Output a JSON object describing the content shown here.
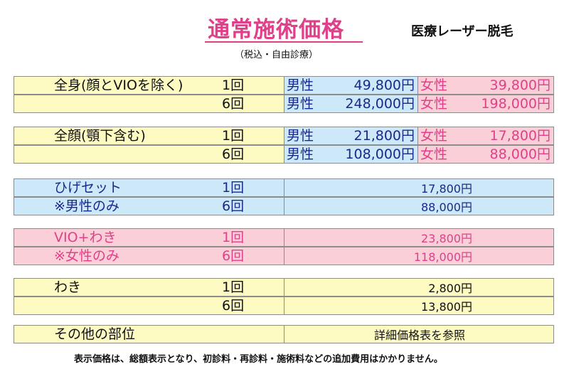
{
  "header": {
    "title": "通常施術価格",
    "subtitle": "医療レーザー脱毛",
    "note": "（税込・自由診療）"
  },
  "groups": {
    "zenshin": {
      "label": "全身(顔とVIOを除く)",
      "rows": [
        {
          "count": "1回",
          "male_label": "男性",
          "male_price": "49,800円",
          "female_label": "女性",
          "female_price": "39,800円"
        },
        {
          "count": "6回",
          "male_label": "男性",
          "male_price": "248,000円",
          "female_label": "女性",
          "female_price": "198,000円"
        }
      ]
    },
    "zengan": {
      "label": "全顔(顎下含む)",
      "rows": [
        {
          "count": "1回",
          "male_label": "男性",
          "male_price": "21,800円",
          "female_label": "女性",
          "female_price": "17,800円"
        },
        {
          "count": "6回",
          "male_label": "男性",
          "male_price": "108,000円",
          "female_label": "女性",
          "female_price": "88,000円"
        }
      ]
    },
    "hige": {
      "label": "ひげセット",
      "sub_label": "※男性のみ",
      "rows": [
        {
          "count": "1回",
          "price": "17,800円"
        },
        {
          "count": "6回",
          "price": "88,000円"
        }
      ]
    },
    "vio": {
      "label": "VIO+わき",
      "sub_label": "※女性のみ",
      "rows": [
        {
          "count": "1回",
          "price": "23,800円"
        },
        {
          "count": "6回",
          "price": "118,000円"
        }
      ]
    },
    "waki": {
      "label": "わき",
      "rows": [
        {
          "count": "1回",
          "price": "2,800円"
        },
        {
          "count": "6回",
          "price": "13,800円"
        }
      ]
    },
    "other": {
      "label": "その他の部位",
      "value": "詳細価格表を参照"
    }
  },
  "footer": {
    "note": "表示価格は、総額表示となり、初診料・再診料・施術料などの追加費用はかかりません。"
  },
  "colors": {
    "title_pink": "#e0408a",
    "navy_text": "#1a2a8c",
    "yellow_fill": "#fdfbc2",
    "blue_fill": "#cde8f8",
    "pink_fill": "#fbcfd8"
  }
}
